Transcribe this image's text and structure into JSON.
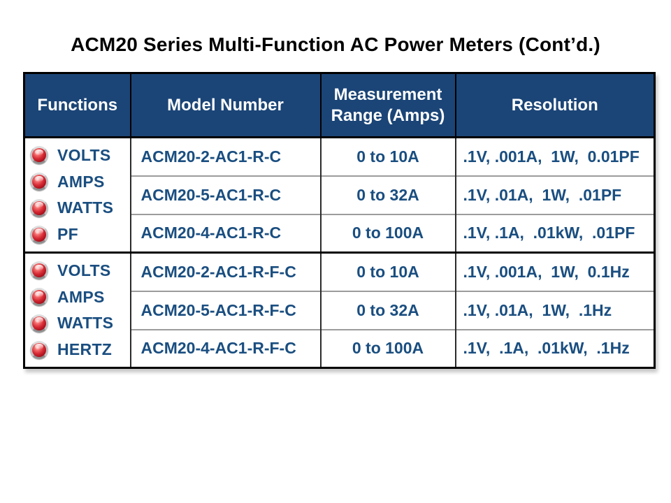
{
  "title": "ACM20 Series Multi-Function AC Power Meters (Cont’d.)",
  "colors": {
    "header_bg": "#1B4577",
    "header_text": "#FFFFFF",
    "body_text": "#1A4E80",
    "outer_border": "#000000",
    "row_divider": "#9C9C9C",
    "led_red": "#C8102E"
  },
  "table": {
    "headers": [
      "Functions",
      "Model Number",
      "Measurement Range (Amps)",
      "Resolution"
    ],
    "groups": [
      {
        "functions": [
          "VOLTS",
          "AMPS",
          "WATTS",
          "PF"
        ],
        "rows": [
          {
            "model": "ACM20-2-AC1-R-C",
            "range": "0 to 10A",
            "resolution": ".1V, .001A,  1W,  0.01PF"
          },
          {
            "model": "ACM20-5-AC1-R-C",
            "range": "0 to 32A",
            "resolution": ".1V, .01A,  1W,  .01PF"
          },
          {
            "model": "ACM20-4-AC1-R-C",
            "range": "0 to 100A",
            "resolution": ".1V, .1A,  .01kW,  .01PF"
          }
        ]
      },
      {
        "functions": [
          "VOLTS",
          "AMPS",
          "WATTS",
          "HERTZ"
        ],
        "rows": [
          {
            "model": "ACM20-2-AC1-R-F-C",
            "range": "0 to 10A",
            "resolution": ".1V, .001A,  1W,  0.1Hz"
          },
          {
            "model": "ACM20-5-AC1-R-F-C",
            "range": "0 to 32A",
            "resolution": ".1V, .01A,  1W,  .1Hz"
          },
          {
            "model": "ACM20-4-AC1-R-F-C",
            "range": "0 to 100A",
            "resolution": ".1V,  .1A,  .01kW,  .1Hz"
          }
        ]
      }
    ]
  }
}
